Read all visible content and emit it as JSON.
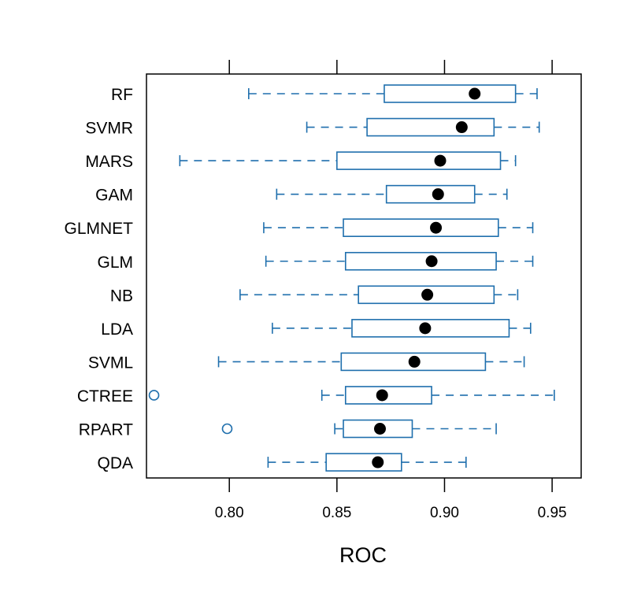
{
  "chart_data": {
    "type": "box",
    "title": "",
    "xlabel": "ROC",
    "ylabel": "",
    "xlim": [
      0.7615,
      0.9635
    ],
    "ticks": [
      0.8,
      0.85,
      0.9,
      0.95
    ],
    "tick_labels": [
      "0.80",
      "0.85",
      "0.90",
      "0.95"
    ],
    "tick_sides": [
      "bottom",
      "top"
    ],
    "grid": false,
    "box_color": "#1f6fad",
    "median_color": "#000000",
    "categories": [
      "RF",
      "SVMR",
      "MARS",
      "GAM",
      "GLMNET",
      "GLM",
      "NB",
      "LDA",
      "SVML",
      "CTREE",
      "RPART",
      "QDA"
    ],
    "series": [
      {
        "name": "RF",
        "whisker_low": 0.809,
        "q1": 0.872,
        "median": 0.914,
        "q3": 0.933,
        "whisker_high": 0.943,
        "outliers": []
      },
      {
        "name": "SVMR",
        "whisker_low": 0.836,
        "q1": 0.864,
        "median": 0.908,
        "q3": 0.923,
        "whisker_high": 0.944,
        "outliers": []
      },
      {
        "name": "MARS",
        "whisker_low": 0.777,
        "q1": 0.85,
        "median": 0.898,
        "q3": 0.926,
        "whisker_high": 0.933,
        "outliers": []
      },
      {
        "name": "GAM",
        "whisker_low": 0.822,
        "q1": 0.873,
        "median": 0.897,
        "q3": 0.914,
        "whisker_high": 0.929,
        "outliers": []
      },
      {
        "name": "GLMNET",
        "whisker_low": 0.816,
        "q1": 0.853,
        "median": 0.896,
        "q3": 0.925,
        "whisker_high": 0.941,
        "outliers": []
      },
      {
        "name": "GLM",
        "whisker_low": 0.817,
        "q1": 0.854,
        "median": 0.894,
        "q3": 0.924,
        "whisker_high": 0.941,
        "outliers": []
      },
      {
        "name": "NB",
        "whisker_low": 0.805,
        "q1": 0.86,
        "median": 0.892,
        "q3": 0.923,
        "whisker_high": 0.934,
        "outliers": []
      },
      {
        "name": "LDA",
        "whisker_low": 0.82,
        "q1": 0.857,
        "median": 0.891,
        "q3": 0.93,
        "whisker_high": 0.94,
        "outliers": []
      },
      {
        "name": "SVML",
        "whisker_low": 0.795,
        "q1": 0.852,
        "median": 0.886,
        "q3": 0.919,
        "whisker_high": 0.937,
        "outliers": []
      },
      {
        "name": "CTREE",
        "whisker_low": 0.843,
        "q1": 0.854,
        "median": 0.871,
        "q3": 0.894,
        "whisker_high": 0.951,
        "outliers": [
          0.765
        ]
      },
      {
        "name": "RPART",
        "whisker_low": 0.849,
        "q1": 0.853,
        "median": 0.87,
        "q3": 0.885,
        "whisker_high": 0.924,
        "outliers": [
          0.799
        ]
      },
      {
        "name": "QDA",
        "whisker_low": 0.818,
        "q1": 0.845,
        "median": 0.869,
        "q3": 0.88,
        "whisker_high": 0.91,
        "outliers": []
      }
    ]
  }
}
